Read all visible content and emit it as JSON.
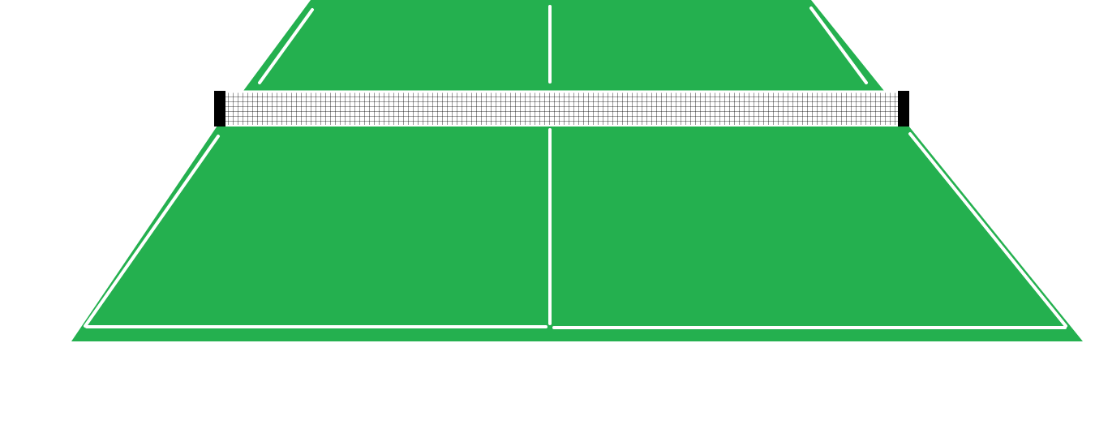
{
  "scene": {
    "background_color": "#ffffff",
    "table_color": "#24b04f",
    "line_color": "#ffffff",
    "net_post_color": "#000000",
    "net_mesh_color": "#000000",
    "net_background_color": "#ffffff"
  }
}
